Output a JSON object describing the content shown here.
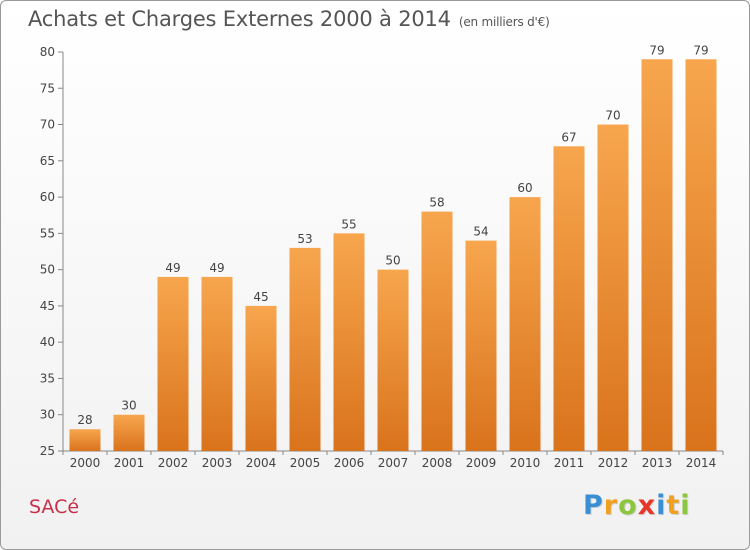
{
  "header": {
    "title": "Achats et Charges Externes 2000 à 2014",
    "unit": "(en milliers d'€)"
  },
  "footer": {
    "commune": "SACé",
    "logo": {
      "text": "Proxiti",
      "letters": [
        {
          "char": "P",
          "color": "#3a8fd4"
        },
        {
          "char": "r",
          "color": "#f0a020"
        },
        {
          "char": "o",
          "color": "#8cc63f"
        },
        {
          "char": "x",
          "color": "#e8352a"
        },
        {
          "char": "i",
          "color": "#3a8fd4"
        },
        {
          "char": "t",
          "color": "#f0a020"
        },
        {
          "char": "i",
          "color": "#8cc63f"
        }
      ]
    }
  },
  "colors": {
    "bar_top": "#f7a64e",
    "bar_bottom": "#d9731c",
    "axis": "#888888",
    "grid": "#dddddd",
    "text": "#444444"
  },
  "chart_data": {
    "type": "bar",
    "categories": [
      "2000",
      "2001",
      "2002",
      "2003",
      "2004",
      "2005",
      "2006",
      "2007",
      "2008",
      "2009",
      "2010",
      "2011",
      "2012",
      "2013",
      "2014"
    ],
    "values": [
      28,
      30,
      49,
      49,
      45,
      53,
      55,
      50,
      58,
      54,
      60,
      67,
      70,
      79,
      79
    ],
    "ylim": [
      25,
      80
    ],
    "yticks": [
      25,
      30,
      35,
      40,
      45,
      50,
      55,
      60,
      65,
      70,
      75,
      80
    ],
    "grid": false,
    "data_labels": true
  }
}
